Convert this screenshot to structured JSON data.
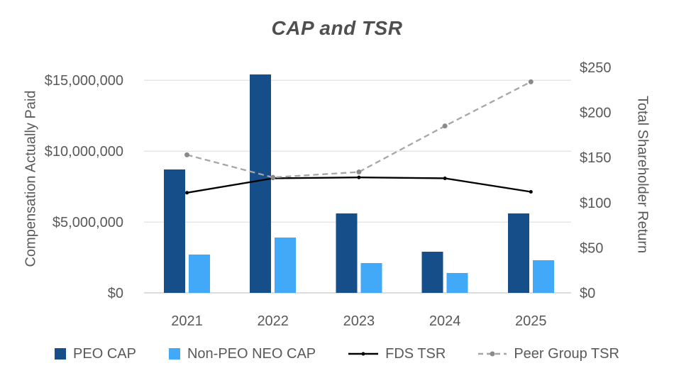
{
  "title": "CAP and TSR",
  "colors": {
    "peo_cap_bar": "#164E8A",
    "non_peo_neo_cap_bar": "#41A9F7",
    "fds_tsr_line": "#000000",
    "peer_group_tsr_line": "#A6A6A6",
    "peer_group_tsr_marker": "#8A8A8A",
    "axis_text": "#595959",
    "title_text": "#4F4F4F",
    "gridline": "#E6E6E6",
    "axis_line": "#DCDCDC",
    "background": "#FFFFFF"
  },
  "chart_data": {
    "type": "bar",
    "subtype": "combo-bar-line-dual-axis",
    "title": "CAP and TSR",
    "categories": [
      "2021",
      "2022",
      "2023",
      "2024",
      "2025"
    ],
    "series": [
      {
        "name": "PEO CAP",
        "type": "bar",
        "axis": "left",
        "color": "#164E8A",
        "values": [
          8700000,
          15400000,
          5600000,
          2900000,
          5600000
        ]
      },
      {
        "name": "Non-PEO NEO CAP",
        "type": "bar",
        "axis": "left",
        "color": "#41A9F7",
        "values": [
          2700000,
          3900000,
          2100000,
          1400000,
          2300000
        ]
      },
      {
        "name": "FDS TSR",
        "type": "line",
        "style": "solid",
        "axis": "right",
        "color": "#000000",
        "marker_color": "#000000",
        "values": [
          111,
          127,
          128,
          127,
          112
        ]
      },
      {
        "name": "Peer Group TSR",
        "type": "line",
        "style": "dashed",
        "axis": "right",
        "color": "#A6A6A6",
        "marker_color": "#8A8A8A",
        "values": [
          153,
          128,
          134,
          185,
          234
        ]
      }
    ],
    "left_axis": {
      "label": "Compensation Actually Paid",
      "ticks": [
        "$0",
        "$5,000,000",
        "$10,000,000",
        "$15,000,000"
      ],
      "tick_values": [
        0,
        5000000,
        10000000,
        15000000
      ],
      "min": 0,
      "max": 15900000
    },
    "right_axis": {
      "label": "Total Shareholder Return",
      "ticks": [
        "$0",
        "$50",
        "$100",
        "$150",
        "$200",
        "$250"
      ],
      "tick_values": [
        0,
        50,
        100,
        150,
        200,
        250
      ],
      "min": 0,
      "max": 250
    },
    "legend": [
      "PEO CAP",
      "Non-PEO NEO CAP",
      "FDS TSR",
      "Peer Group TSR"
    ],
    "legend_position": "bottom",
    "grid": true
  }
}
